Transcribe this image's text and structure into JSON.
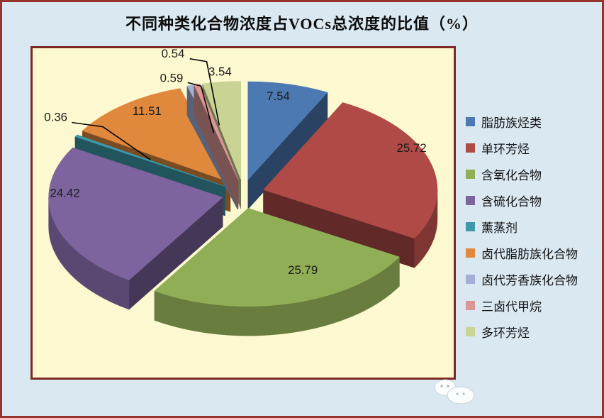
{
  "window": {
    "background": "#d9e8f1",
    "frame_border_color": "#96342c"
  },
  "chart_data": {
    "type": "pie",
    "style": "3d-exploded",
    "title": "不同种类化合物浓度占VOCs总浓度的比值（%）",
    "unit": "%",
    "legend_position": "right",
    "plot_background": "#fcf8cf",
    "plot_border_color": "#7b2a26",
    "labels": [
      "脂肪族烃类",
      "单环芳烃",
      "含氧化合物",
      "含硫化合物",
      "薰蒸剂",
      "卤代脂肪族化合物",
      "卤代芳香族化合物",
      "三卤代甲烷",
      "多环芳烃"
    ],
    "values": [
      7.54,
      25.72,
      25.79,
      24.42,
      0.36,
      11.51,
      0.59,
      0.54,
      3.54
    ],
    "colors": [
      "#4C79B2",
      "#B04A46",
      "#90AE56",
      "#7D649E",
      "#3E98AA",
      "#E0883C",
      "#A4AFD8",
      "#DB9793",
      "#C9D494"
    ],
    "label_text_color": "#1c1c1c"
  },
  "decor": {
    "watermark_icon": "cloud-doodle"
  }
}
